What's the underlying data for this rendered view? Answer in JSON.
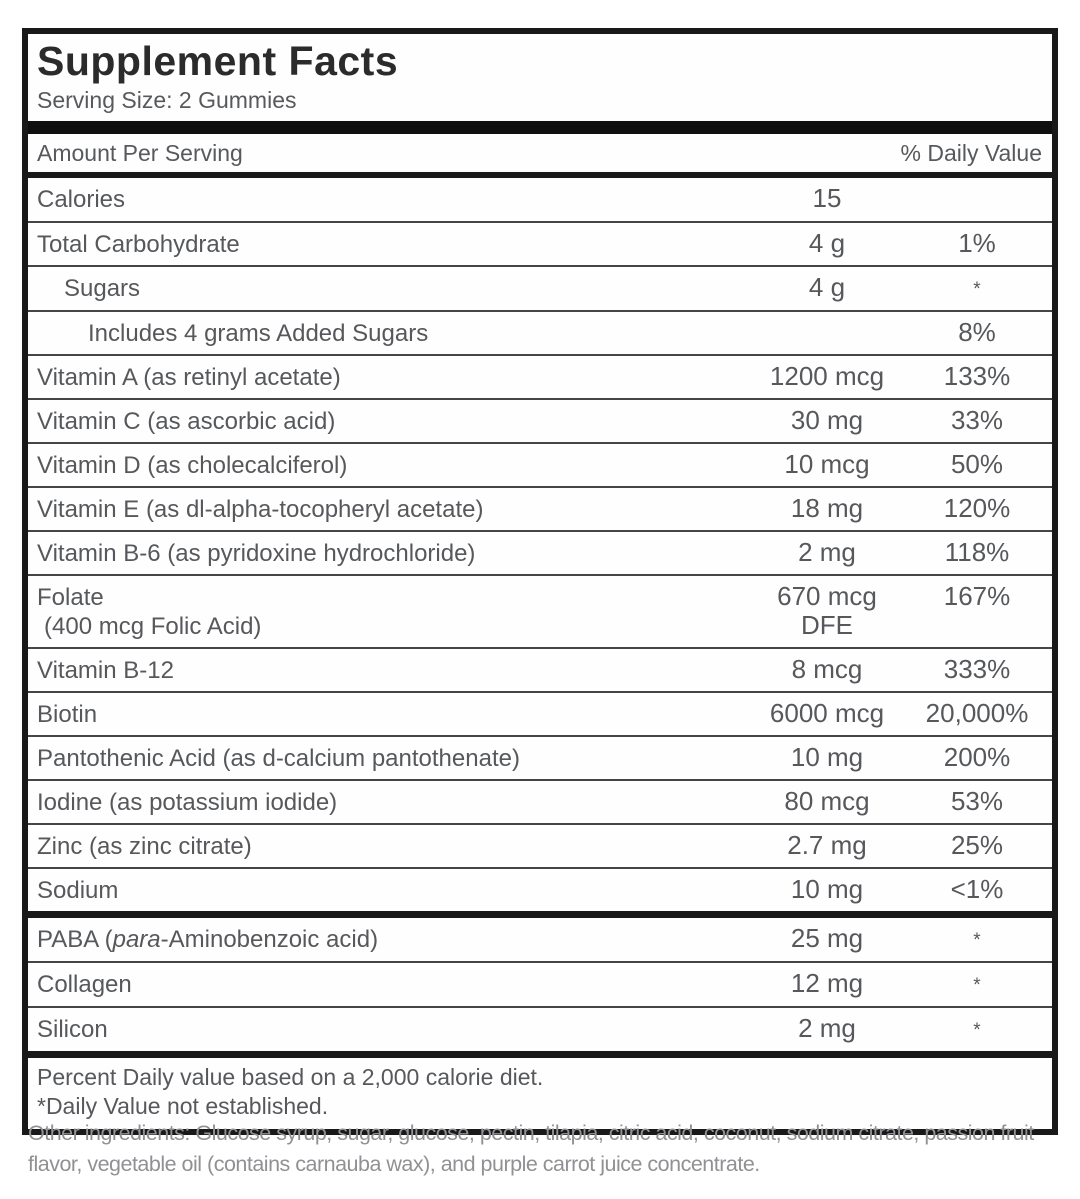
{
  "label": {
    "title": "Supplement Facts",
    "serving_size": "Serving Size: 2 Gummies",
    "columns": {
      "amount_header": "Amount Per Serving",
      "dv_header": "% Daily Value"
    },
    "rows": [
      {
        "name": "Calories",
        "amount": "15",
        "dv": "",
        "sep": "none"
      },
      {
        "name": "Total Carbohydrate",
        "amount": "4 g",
        "dv": "1%",
        "sep": "thin"
      },
      {
        "name": "Sugars",
        "amount": "4 g",
        "dv": "*",
        "sep": "thin",
        "indent": 1
      },
      {
        "name": "Includes 4 grams Added Sugars",
        "amount": "",
        "dv": "8%",
        "sep": "thin",
        "indent": 2
      },
      {
        "name": "Vitamin A (as retinyl acetate)",
        "amount": "1200 mcg",
        "dv": "133%",
        "sep": "thin"
      },
      {
        "name": "Vitamin C (as ascorbic acid)",
        "amount": "30 mg",
        "dv": "33%",
        "sep": "thin"
      },
      {
        "name": "Vitamin D (as cholecalciferol)",
        "amount": "10 mcg",
        "dv": "50%",
        "sep": "thin"
      },
      {
        "name": "Vitamin E (as dl-alpha-tocopheryl acetate)",
        "amount": "18 mg",
        "dv": "120%",
        "sep": "thin"
      },
      {
        "name": "Vitamin B-6 (as pyridoxine hydrochloride)",
        "amount": "2 mg",
        "dv": "118%",
        "sep": "thin"
      },
      {
        "name": "Folate",
        "name2": "(400 mcg Folic Acid)",
        "amount": "670 mcg",
        "amount2": "DFE",
        "dv": "167%",
        "sep": "thin"
      },
      {
        "name": "Vitamin B-12",
        "amount": "8 mcg",
        "dv": "333%",
        "sep": "thin"
      },
      {
        "name": "Biotin",
        "amount": "6000 mcg",
        "dv": "20,000%",
        "sep": "thin"
      },
      {
        "name": "Pantothenic Acid (as d-calcium pantothenate)",
        "amount": "10 mg",
        "dv": "200%",
        "sep": "thin"
      },
      {
        "name": "Iodine (as potassium iodide)",
        "amount": "80 mcg",
        "dv": "53%",
        "sep": "thin"
      },
      {
        "name": "Zinc (as zinc citrate)",
        "amount": "2.7 mg",
        "dv": "25%",
        "sep": "thin"
      },
      {
        "name": "Sodium",
        "amount": "10 mg",
        "dv": "<1%",
        "sep": "thin"
      },
      {
        "name_parts": [
          {
            "t": "PABA (",
            "i": false
          },
          {
            "t": "para",
            "i": true
          },
          {
            "t": "-Aminobenzoic acid)",
            "i": false
          }
        ],
        "name": "PABA (para-Aminobenzoic acid)",
        "amount": "25 mg",
        "dv": "*",
        "sep": "thick"
      },
      {
        "name": "Collagen",
        "amount": "12 mg",
        "dv": "*",
        "sep": "thin"
      },
      {
        "name": "Silicon",
        "amount": "2 mg",
        "dv": "*",
        "sep": "thin"
      }
    ],
    "footnotes": [
      "Percent Daily value based on a 2,000 calorie diet.",
      "*Daily Value not established."
    ]
  },
  "other_ingredients": "Other ingredients: Glucose syrup, sugar, glucose, pectin, tilapia, citric acid, coconut, sodium citrate, passion fruit flavor, vegetable oil (contains carnauba wax), and purple carrot juice concentrate.",
  "colors": {
    "border": "#191919",
    "text_gray": "#56585b",
    "ingredients_gray": "#8f9194",
    "background": "#ffffff"
  }
}
